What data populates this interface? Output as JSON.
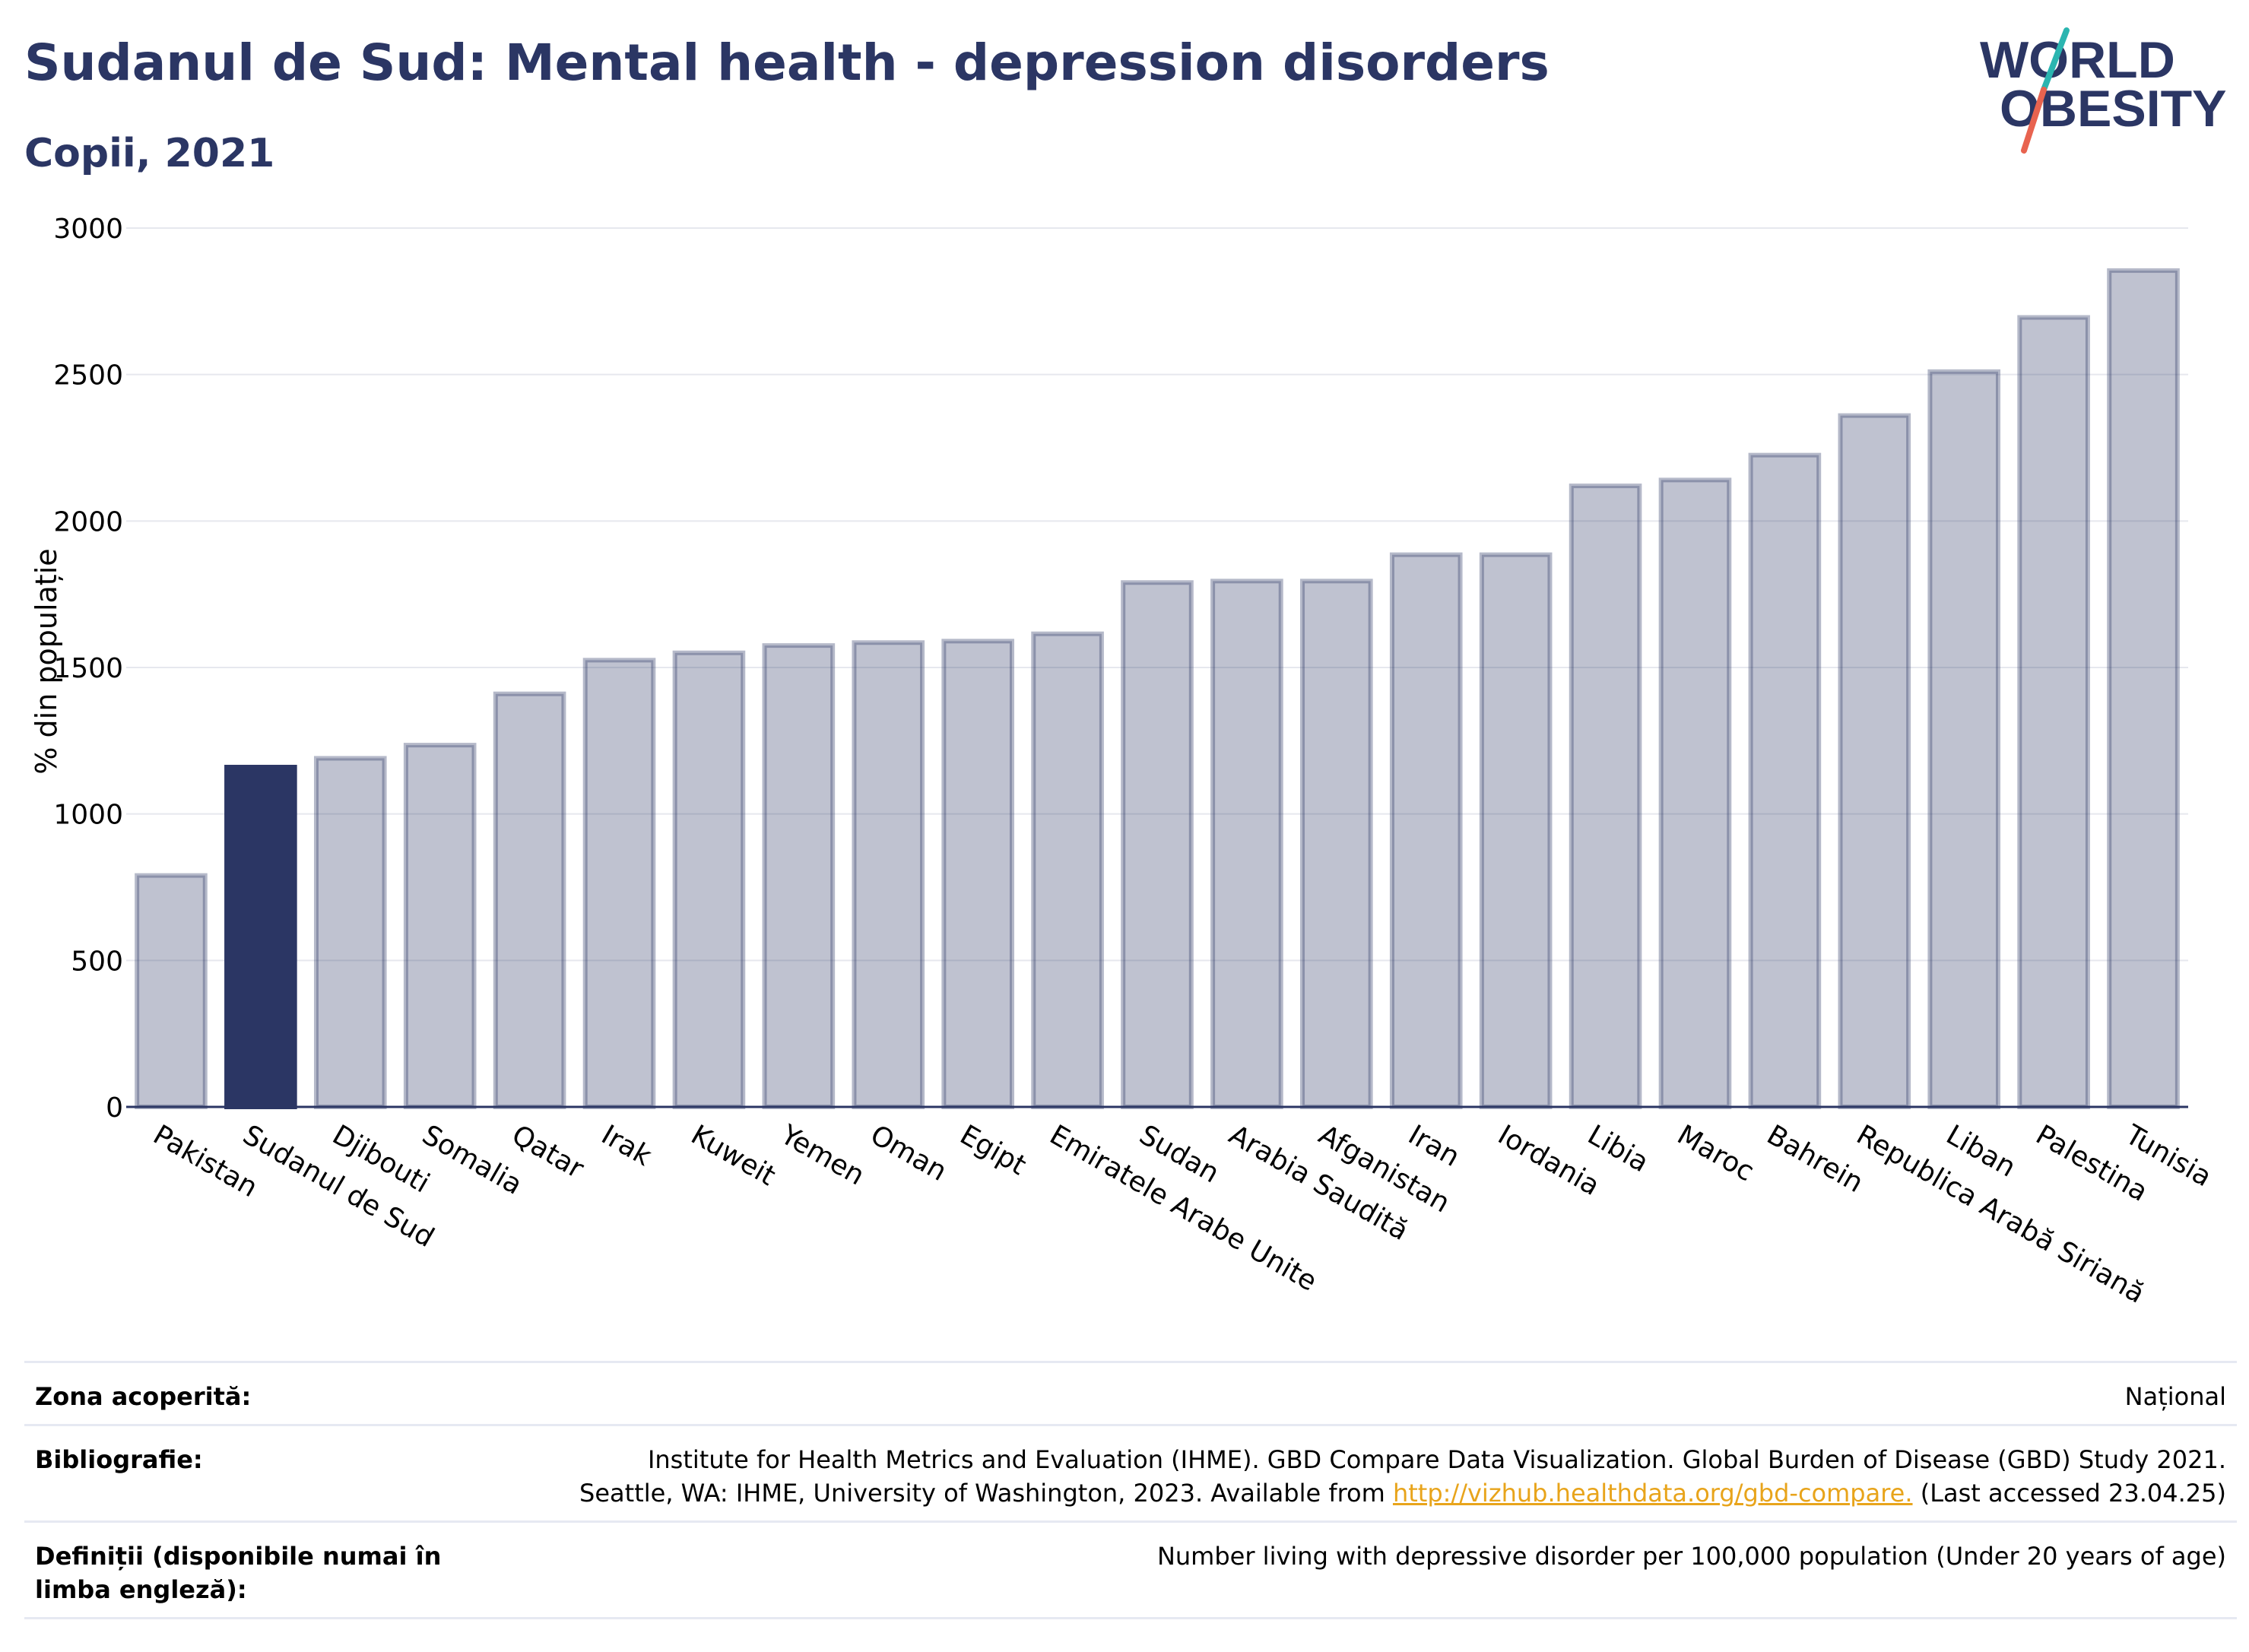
{
  "header": {
    "title": "Sudanul de Sud: Mental health - depression disorders",
    "subtitle": "Copii, 2021"
  },
  "logo": {
    "line1": "WORLD",
    "line2": "OBESITY",
    "colors": {
      "text": "#2b3664",
      "slash_teal": "#2bb5b0",
      "slash_red": "#e8634f"
    }
  },
  "chart_data": {
    "type": "bar",
    "title": "",
    "xlabel": "",
    "ylabel": "% din populație",
    "ylim": [
      0,
      3000
    ],
    "yticks": [
      0,
      500,
      1000,
      1500,
      2000,
      2500,
      3000
    ],
    "grid": true,
    "highlight": "Sudanul de Sud",
    "colors": {
      "bar": "#2b3664",
      "bar_fill_opacity": 0.3,
      "highlight": "#2b3664"
    },
    "categories": [
      "Pakistan",
      "Sudanul de Sud",
      "Djibouti",
      "Somalia",
      "Qatar",
      "Irak",
      "Kuweit",
      "Yemen",
      "Oman",
      "Egipt",
      "Emiratele Arabe Unite",
      "Sudan",
      "Arabia Saudită",
      "Afganistan",
      "Iran",
      "Iordania",
      "Libia",
      "Maroc",
      "Bahrein",
      "Republica Arabă Siriană",
      "Liban",
      "Palestina",
      "Tunisia"
    ],
    "values": [
      790,
      1160,
      1190,
      1235,
      1410,
      1525,
      1550,
      1575,
      1585,
      1590,
      1615,
      1790,
      1795,
      1795,
      1885,
      1885,
      2120,
      2140,
      2225,
      2360,
      2510,
      2695,
      2855
    ]
  },
  "footer": {
    "rows": [
      {
        "label": "Zona acoperită:",
        "value": "Național"
      },
      {
        "label": "Bibliografie:",
        "value_line1": "Institute for Health Metrics and Evaluation (IHME). GBD Compare Data Visualization. Global Burden of Disease (GBD) Study 2021.",
        "value_line2_pre": "Seattle, WA: IHME, University of Washington, 2023. Available from ",
        "link": "http://vizhub.healthdata.org/gbd-compare.",
        "value_line2_post": " (Last accessed 23.04.25)"
      },
      {
        "label": "Definiții (disponibile numai în limba engleză):",
        "value": "Number living with depressive disorder per 100,000 population (Under 20 years of age)"
      }
    ]
  }
}
